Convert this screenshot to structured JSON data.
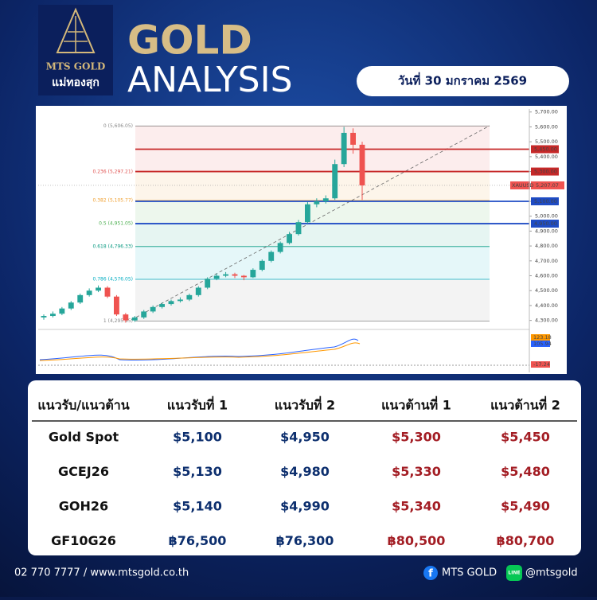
{
  "header": {
    "logo_brand": "MTS GOLD",
    "logo_thai": "แม่ทองสุก",
    "title_line1": "GOLD",
    "title_line2": "ANALYSIS",
    "date": "วันที่ 30 มกราคม 2569"
  },
  "chart_data": {
    "type": "candlestick",
    "open": [
      4320,
      4330,
      4345,
      4380,
      4420,
      4470,
      4500,
      4520,
      4460,
      4340,
      4300,
      4320,
      4360,
      4390,
      4410,
      4430,
      4440,
      4470,
      4520,
      4580,
      4600,
      4610,
      4600,
      4590,
      4640,
      4700,
      4760,
      4820,
      4880,
      4960,
      5080,
      5100,
      5120,
      5350,
      5560,
      5480
    ],
    "high": [
      4340,
      4360,
      4390,
      4430,
      4480,
      4515,
      4535,
      4530,
      4470,
      4350,
      4330,
      4370,
      4400,
      4420,
      4440,
      4455,
      4480,
      4530,
      4590,
      4615,
      4625,
      4620,
      4605,
      4650,
      4710,
      4770,
      4830,
      4895,
      4975,
      5095,
      5120,
      5140,
      5380,
      5600,
      5590,
      5500
    ],
    "low": [
      4305,
      4320,
      4335,
      4370,
      4410,
      4460,
      4490,
      4450,
      4330,
      4285,
      4290,
      4310,
      4350,
      4380,
      4400,
      4420,
      4430,
      4460,
      4510,
      4570,
      4590,
      4585,
      4570,
      4585,
      4630,
      4690,
      4750,
      4810,
      4870,
      4950,
      5060,
      5085,
      5110,
      5330,
      5420,
      5110
    ],
    "close": [
      4330,
      4345,
      4380,
      4420,
      4470,
      4500,
      4520,
      4460,
      4340,
      4300,
      4320,
      4360,
      4390,
      4410,
      4430,
      4440,
      4470,
      4520,
      4580,
      4600,
      4610,
      4600,
      4590,
      4640,
      4700,
      4760,
      4820,
      4880,
      4960,
      5080,
      5100,
      5120,
      5350,
      5560,
      5480,
      5207.07
    ],
    "up_color": "#26a69a",
    "down_color": "#ef5350",
    "ylim": [
      4250,
      5720
    ],
    "yticks": [
      {
        "value": 4300,
        "label": "4,300.00"
      },
      {
        "value": 4400,
        "label": "4,400.00"
      },
      {
        "value": 4500,
        "label": "4,500.00"
      },
      {
        "value": 4600,
        "label": "4,600.00"
      },
      {
        "value": 4700,
        "label": "4,700.00"
      },
      {
        "value": 4800,
        "label": "4,800.00"
      },
      {
        "value": 4900,
        "label": "4,900.00"
      },
      {
        "value": 5000,
        "label": "5,000.00"
      },
      {
        "value": 5100,
        "label": "5,100.00"
      },
      {
        "value": 5200,
        "label": "5,200.00"
      },
      {
        "value": 5300,
        "label": "5,300.00"
      },
      {
        "value": 5400,
        "label": "5,400.00"
      },
      {
        "value": 5500,
        "label": "5,500.00"
      },
      {
        "value": 5600,
        "label": "5,600.00"
      },
      {
        "value": 5700,
        "label": "5,700.00"
      }
    ],
    "fib_levels": [
      {
        "value": 5606.05,
        "label": "0 (5,606.05)",
        "color": "#888888"
      },
      {
        "value": 5297.21,
        "label": "0.236 (5,297.21)",
        "color": "#e0504f"
      },
      {
        "value": 5105.77,
        "label": "0.382 (5,105.77)",
        "color": "#f0a030"
      },
      {
        "value": 4951.05,
        "label": "0.5 (4,951.05)",
        "color": "#4caf50"
      },
      {
        "value": 4796.33,
        "label": "0.618 (4,796.33)",
        "color": "#089981"
      },
      {
        "value": 4576.05,
        "label": "0.786 (4,576.05)",
        "color": "#00acc1"
      },
      {
        "value": 4295.45,
        "label": "1 (4,295.45)",
        "color": "#888888"
      }
    ],
    "levels": [
      {
        "value": 5450,
        "label": "5,450.00",
        "color": "#c62828"
      },
      {
        "value": 5300,
        "label": "5,300.00",
        "color": "#c62828"
      },
      {
        "value": 5100,
        "label": "5,100.00",
        "color": "#1e4bc4"
      },
      {
        "value": 4950,
        "label": "4,950.00",
        "color": "#1e4bc4"
      }
    ],
    "last_price": {
      "symbol": "XAUUSD",
      "value": 5207.07,
      "label": "5,207.07",
      "color": "#ef5350"
    },
    "indicator_labels": [
      {
        "label": "123.18",
        "color": "#ff9800"
      },
      {
        "label": "105.94",
        "color": "#2962ff"
      },
      {
        "label": "-17.24",
        "color": "#ef5350"
      }
    ]
  },
  "table": {
    "header": [
      "แนวรับ/แนวต้าน",
      "แนวรับที่ 1",
      "แนวรับที่ 2",
      "แนวต้านที่ 1",
      "แนวต้านที่ 2"
    ],
    "rows": [
      [
        "Gold Spot",
        "$5,100",
        "$4,950",
        "$5,300",
        "$5,450"
      ],
      [
        "GCEJ26",
        "$5,130",
        "$4,980",
        "$5,330",
        "$5,480"
      ],
      [
        "GOH26",
        "$5,140",
        "$4,990",
        "$5,340",
        "$5,490"
      ],
      [
        "GF10G26",
        "฿76,500",
        "฿76,300",
        "฿80,500",
        "฿80,700"
      ]
    ]
  },
  "footer": {
    "contact": "02 770 7777 / www.mtsgold.co.th",
    "facebook": "MTS GOLD",
    "line": "@mtsgold"
  }
}
